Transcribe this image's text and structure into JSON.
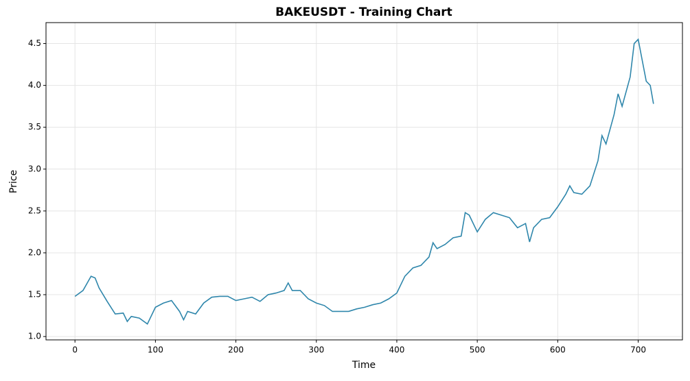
{
  "chart_data": {
    "type": "line",
    "title": "BAKEUSDT - Training Chart",
    "xlabel": "Time",
    "ylabel": "Price",
    "x": [
      0,
      10,
      20,
      25,
      30,
      40,
      50,
      60,
      65,
      70,
      80,
      90,
      100,
      110,
      120,
      130,
      135,
      140,
      150,
      160,
      170,
      180,
      190,
      200,
      210,
      220,
      230,
      240,
      250,
      260,
      265,
      270,
      280,
      290,
      300,
      310,
      320,
      330,
      340,
      350,
      360,
      370,
      380,
      390,
      400,
      410,
      420,
      430,
      440,
      445,
      450,
      460,
      470,
      480,
      485,
      490,
      500,
      510,
      520,
      530,
      540,
      550,
      560,
      565,
      570,
      580,
      590,
      600,
      610,
      615,
      620,
      630,
      640,
      650,
      655,
      660,
      670,
      675,
      680,
      690,
      695,
      700,
      705,
      710,
      715,
      719
    ],
    "series": [
      {
        "name": "Price",
        "color": "#2e86ab",
        "values": [
          1.48,
          1.55,
          1.72,
          1.7,
          1.58,
          1.42,
          1.27,
          1.28,
          1.18,
          1.24,
          1.22,
          1.15,
          1.35,
          1.4,
          1.43,
          1.3,
          1.2,
          1.3,
          1.27,
          1.4,
          1.47,
          1.48,
          1.48,
          1.43,
          1.45,
          1.47,
          1.42,
          1.5,
          1.52,
          1.55,
          1.64,
          1.55,
          1.55,
          1.45,
          1.4,
          1.37,
          1.3,
          1.3,
          1.3,
          1.33,
          1.35,
          1.38,
          1.4,
          1.45,
          1.52,
          1.72,
          1.82,
          1.85,
          1.95,
          2.12,
          2.05,
          2.1,
          2.18,
          2.2,
          2.48,
          2.45,
          2.25,
          2.4,
          2.48,
          2.45,
          2.42,
          2.3,
          2.35,
          2.13,
          2.3,
          2.4,
          2.42,
          2.55,
          2.7,
          2.8,
          2.72,
          2.7,
          2.8,
          3.1,
          3.4,
          3.3,
          3.65,
          3.9,
          3.75,
          4.1,
          4.5,
          4.55,
          4.3,
          4.05,
          4.0,
          3.78
        ]
      }
    ],
    "xlim": [
      -36,
      755
    ],
    "ylim": [
      0.96,
      4.75
    ],
    "xticks": [
      0,
      100,
      200,
      300,
      400,
      500,
      600,
      700
    ],
    "yticks": [
      {
        "value": 1,
        "label": "1.0"
      },
      {
        "value": 1.5,
        "label": "1.5"
      },
      {
        "value": 2,
        "label": "2.0"
      },
      {
        "value": 2.5,
        "label": "2.5"
      },
      {
        "value": 3,
        "label": "3.0"
      },
      {
        "value": 3.5,
        "label": "3.5"
      },
      {
        "value": 4,
        "label": "4.0"
      },
      {
        "value": 4.5,
        "label": "4.5"
      }
    ],
    "grid": true
  }
}
